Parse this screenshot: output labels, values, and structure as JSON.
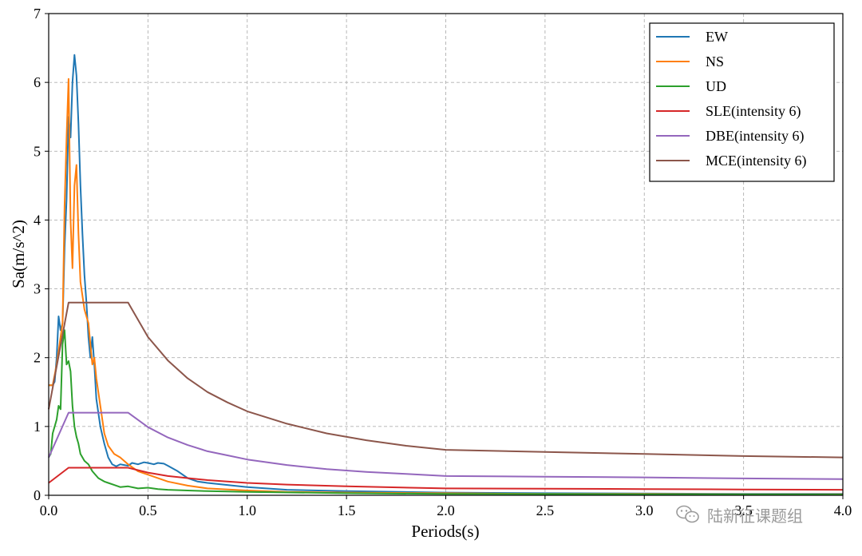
{
  "chart_data": {
    "type": "line",
    "title": "",
    "xlabel": "Periods(s)",
    "ylabel": "Sa(m/s^2)",
    "xlim": [
      0.0,
      4.0
    ],
    "ylim": [
      0,
      7
    ],
    "xticks": [
      "0.0",
      "0.5",
      "1.0",
      "1.5",
      "2.0",
      "2.5",
      "3.0",
      "3.5",
      "4.0"
    ],
    "yticks": [
      "0",
      "1",
      "2",
      "3",
      "4",
      "5",
      "6",
      "7"
    ],
    "grid": true,
    "legend_position": "top-right",
    "series": [
      {
        "name": "EW",
        "color": "#1f77b4",
        "x": [
          0.0,
          0.02,
          0.03,
          0.04,
          0.05,
          0.06,
          0.07,
          0.08,
          0.09,
          0.1,
          0.11,
          0.12,
          0.13,
          0.14,
          0.15,
          0.16,
          0.17,
          0.18,
          0.19,
          0.2,
          0.21,
          0.22,
          0.23,
          0.24,
          0.25,
          0.26,
          0.28,
          0.3,
          0.32,
          0.34,
          0.36,
          0.38,
          0.4,
          0.42,
          0.45,
          0.48,
          0.5,
          0.53,
          0.55,
          0.58,
          0.6,
          0.65,
          0.7,
          0.75,
          0.8,
          0.9,
          1.0,
          1.2,
          1.5,
          2.0,
          2.5,
          3.0,
          3.5,
          4.0
        ],
        "y": [
          1.6,
          1.6,
          1.65,
          2.0,
          2.6,
          2.4,
          2.5,
          3.6,
          4.3,
          5.5,
          5.2,
          6.0,
          6.4,
          6.1,
          5.4,
          4.5,
          3.8,
          3.2,
          2.8,
          2.3,
          2.0,
          2.3,
          1.9,
          1.4,
          1.2,
          1.0,
          0.75,
          0.55,
          0.45,
          0.42,
          0.45,
          0.44,
          0.43,
          0.47,
          0.45,
          0.48,
          0.47,
          0.45,
          0.47,
          0.46,
          0.43,
          0.35,
          0.25,
          0.2,
          0.18,
          0.15,
          0.12,
          0.08,
          0.06,
          0.04,
          0.03,
          0.025,
          0.02,
          0.02
        ]
      },
      {
        "name": "NS",
        "color": "#ff7f0e",
        "x": [
          0.0,
          0.02,
          0.04,
          0.06,
          0.07,
          0.08,
          0.09,
          0.1,
          0.11,
          0.12,
          0.13,
          0.14,
          0.15,
          0.16,
          0.17,
          0.18,
          0.19,
          0.2,
          0.21,
          0.22,
          0.23,
          0.24,
          0.26,
          0.28,
          0.3,
          0.33,
          0.36,
          0.4,
          0.45,
          0.5,
          0.6,
          0.7,
          0.8,
          1.0,
          1.2,
          1.5,
          2.0,
          2.5,
          3.0,
          3.5,
          4.0
        ],
        "y": [
          1.6,
          1.6,
          1.9,
          2.3,
          2.5,
          4.2,
          5.2,
          6.05,
          4.0,
          3.3,
          4.5,
          4.8,
          3.8,
          3.1,
          2.9,
          2.7,
          2.6,
          2.5,
          2.2,
          1.9,
          2.0,
          1.7,
          1.3,
          0.9,
          0.72,
          0.6,
          0.55,
          0.45,
          0.35,
          0.3,
          0.2,
          0.14,
          0.1,
          0.07,
          0.05,
          0.04,
          0.03,
          0.02,
          0.02,
          0.015,
          0.015
        ]
      },
      {
        "name": "UD",
        "color": "#2ca02c",
        "x": [
          0.0,
          0.01,
          0.02,
          0.03,
          0.04,
          0.05,
          0.06,
          0.07,
          0.08,
          0.09,
          0.1,
          0.11,
          0.12,
          0.13,
          0.14,
          0.15,
          0.16,
          0.18,
          0.2,
          0.22,
          0.25,
          0.28,
          0.3,
          0.33,
          0.36,
          0.4,
          0.45,
          0.5,
          0.55,
          0.6,
          0.7,
          0.8,
          1.0,
          1.5,
          2.0,
          3.0,
          4.0
        ],
        "y": [
          0.55,
          0.6,
          0.9,
          1.0,
          1.1,
          1.3,
          1.25,
          2.2,
          2.4,
          1.9,
          1.95,
          1.8,
          1.3,
          1.0,
          0.85,
          0.75,
          0.6,
          0.5,
          0.45,
          0.35,
          0.25,
          0.2,
          0.18,
          0.15,
          0.12,
          0.13,
          0.1,
          0.11,
          0.09,
          0.08,
          0.07,
          0.06,
          0.05,
          0.03,
          0.02,
          0.015,
          0.01
        ]
      },
      {
        "name": "SLE(intensity 6)",
        "color": "#d62728",
        "x": [
          0.0,
          0.1,
          0.4,
          0.5,
          0.6,
          0.7,
          0.8,
          1.0,
          1.2,
          1.5,
          2.0,
          2.5,
          3.0,
          3.5,
          4.0
        ],
        "y": [
          0.18,
          0.4,
          0.4,
          0.33,
          0.28,
          0.25,
          0.22,
          0.18,
          0.155,
          0.13,
          0.1,
          0.095,
          0.09,
          0.085,
          0.08
        ]
      },
      {
        "name": "DBE(intensity 6)",
        "color": "#9467bd",
        "x": [
          0.0,
          0.1,
          0.4,
          0.5,
          0.6,
          0.7,
          0.8,
          0.9,
          1.0,
          1.2,
          1.4,
          1.6,
          1.8,
          2.0,
          2.5,
          3.0,
          3.5,
          4.0
        ],
        "y": [
          0.55,
          1.2,
          1.2,
          0.99,
          0.84,
          0.73,
          0.64,
          0.58,
          0.52,
          0.44,
          0.38,
          0.34,
          0.31,
          0.28,
          0.27,
          0.26,
          0.245,
          0.235
        ]
      },
      {
        "name": "MCE(intensity 6)",
        "color": "#8c564b",
        "x": [
          0.0,
          0.1,
          0.4,
          0.5,
          0.6,
          0.7,
          0.8,
          0.9,
          1.0,
          1.2,
          1.4,
          1.6,
          1.8,
          2.0,
          2.5,
          3.0,
          3.5,
          4.0
        ],
        "y": [
          1.25,
          2.8,
          2.8,
          2.3,
          1.96,
          1.7,
          1.5,
          1.35,
          1.22,
          1.04,
          0.9,
          0.8,
          0.72,
          0.66,
          0.63,
          0.6,
          0.57,
          0.55
        ]
      }
    ]
  },
  "watermark": {
    "text": "陆新征课题组",
    "icon": "wechat-icon"
  }
}
